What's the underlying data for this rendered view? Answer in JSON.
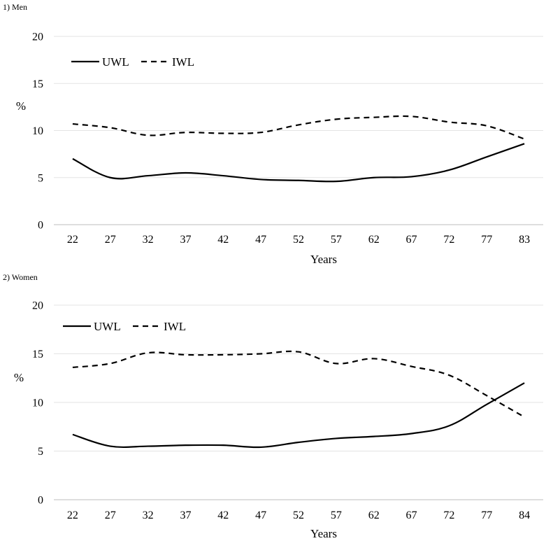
{
  "chart_data": [
    {
      "type": "line",
      "panel_title": "1) Men",
      "ylabel": "%",
      "xlabel": "Years",
      "ylim": [
        0,
        20
      ],
      "yticks": [
        0,
        5,
        10,
        15,
        20
      ],
      "x_ticks": [
        "22",
        "27",
        "32",
        "37",
        "42",
        "47",
        "52",
        "57",
        "62",
        "67",
        "72",
        "77",
        "83"
      ],
      "grid": "horizontal",
      "legend_position": "top-left",
      "series": [
        {
          "name": "UWL",
          "style": "solid",
          "values": [
            7.0,
            5.0,
            5.2,
            5.5,
            5.2,
            4.8,
            4.7,
            4.6,
            5.0,
            5.1,
            5.8,
            7.2,
            8.6
          ]
        },
        {
          "name": "IWL",
          "style": "dashed",
          "values": [
            10.7,
            10.3,
            9.5,
            9.8,
            9.7,
            9.8,
            10.6,
            11.2,
            11.4,
            11.5,
            10.9,
            10.5,
            9.1
          ]
        }
      ]
    },
    {
      "type": "line",
      "panel_title": "2) Women",
      "ylabel": "%",
      "xlabel": "Years",
      "ylim": [
        0,
        20
      ],
      "yticks": [
        0,
        5,
        10,
        15,
        20
      ],
      "x_ticks": [
        "22",
        "27",
        "32",
        "37",
        "42",
        "47",
        "52",
        "57",
        "62",
        "67",
        "72",
        "77",
        "84"
      ],
      "grid": "horizontal",
      "legend_position": "top-left",
      "series": [
        {
          "name": "UWL",
          "style": "solid",
          "values": [
            6.7,
            5.5,
            5.5,
            5.6,
            5.6,
            5.4,
            5.9,
            6.3,
            6.5,
            6.8,
            7.6,
            9.8,
            12.0
          ]
        },
        {
          "name": "IWL",
          "style": "dashed",
          "values": [
            13.6,
            14.0,
            15.1,
            14.9,
            14.9,
            15.0,
            15.2,
            14.0,
            14.5,
            13.7,
            12.8,
            10.7,
            8.5
          ]
        }
      ]
    }
  ]
}
